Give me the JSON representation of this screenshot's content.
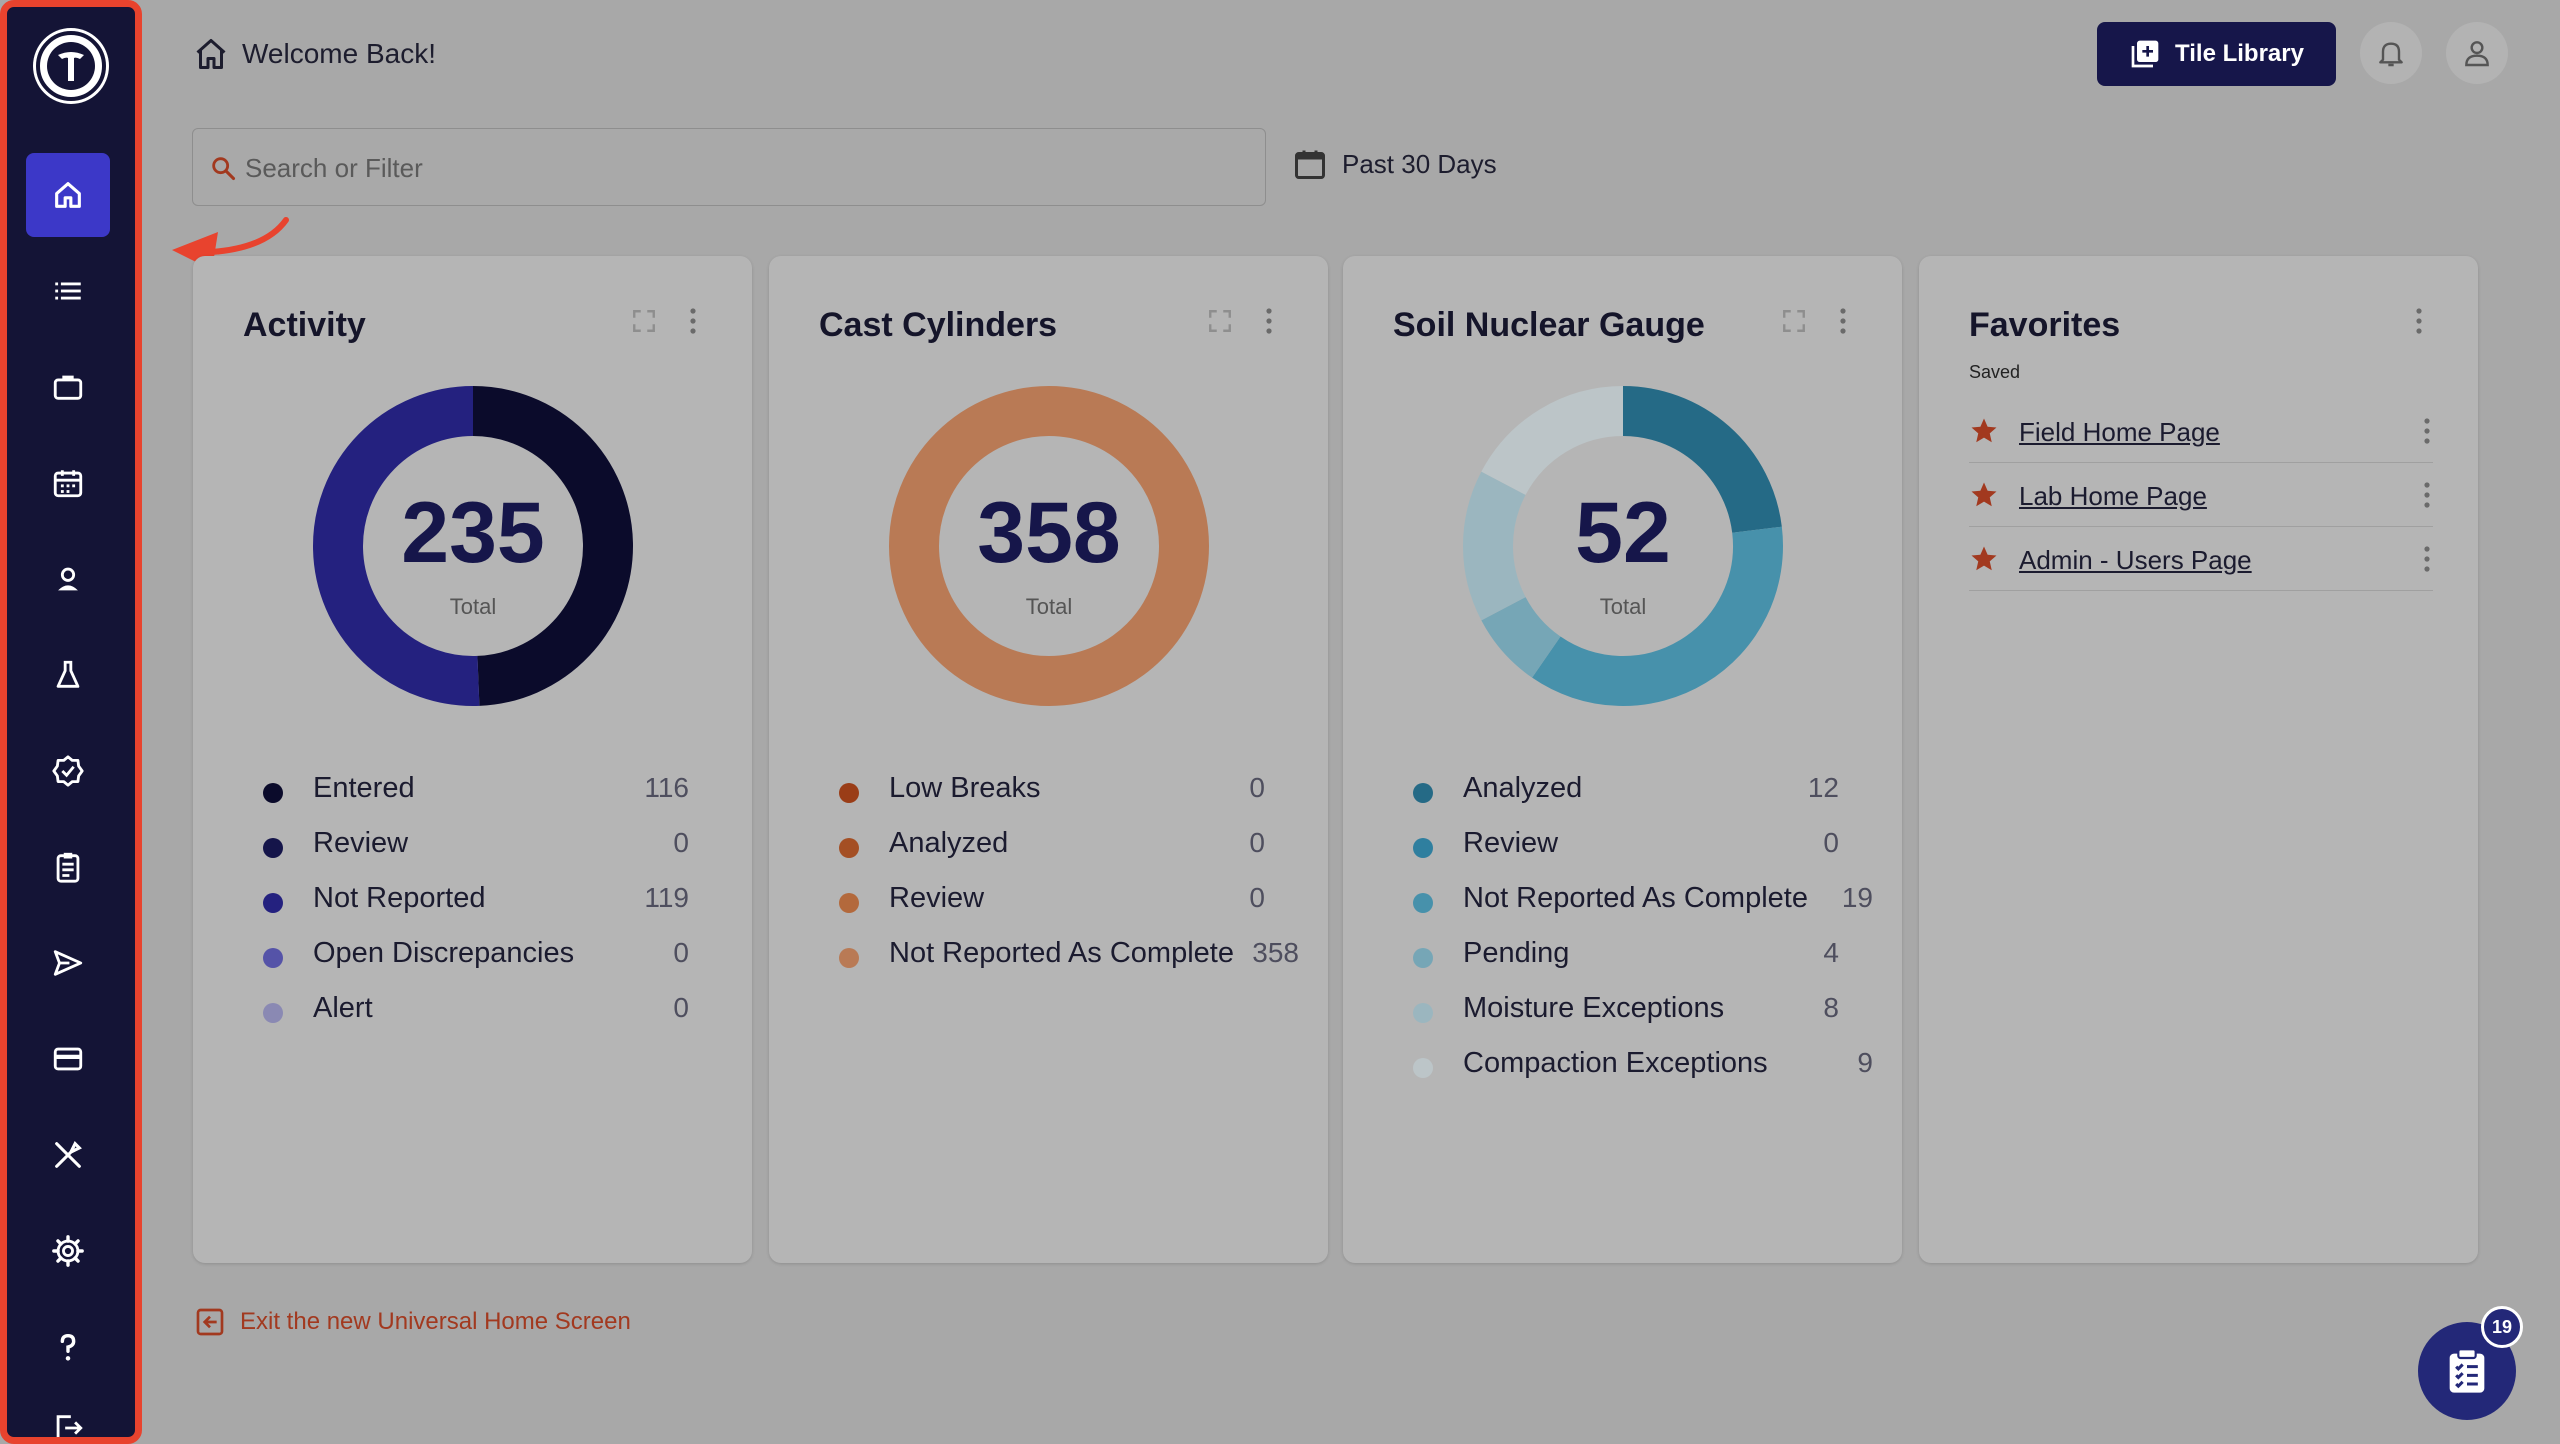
{
  "header": {
    "welcome": "Welcome Back!",
    "tile_library_label": "Tile Library"
  },
  "search": {
    "placeholder": "Search or Filter"
  },
  "date_filter": {
    "label": "Past 30 Days"
  },
  "sidebar": {
    "items": [
      {
        "icon": "home-icon",
        "active": true
      },
      {
        "icon": "list-icon"
      },
      {
        "icon": "briefcase-icon"
      },
      {
        "icon": "calendar-icon"
      },
      {
        "icon": "person-icon"
      },
      {
        "icon": "flask-icon"
      },
      {
        "icon": "verified-badge-icon"
      },
      {
        "icon": "clipboard-icon"
      },
      {
        "icon": "send-icon"
      },
      {
        "icon": "credit-card-icon"
      },
      {
        "icon": "tools-icon"
      },
      {
        "icon": "gear-icon"
      },
      {
        "icon": "help-icon"
      },
      {
        "icon": "logout-icon"
      }
    ]
  },
  "cards": [
    {
      "title": "Activity",
      "total": "235",
      "total_label": "Total",
      "segments": [
        {
          "label": "Entered",
          "value": 116,
          "color": "#0b0b2b"
        },
        {
          "label": "Review",
          "value": 0,
          "color": "#15154a"
        },
        {
          "label": "Not Reported",
          "value": 119,
          "color": "#24217f"
        },
        {
          "label": "Open Discrepancies",
          "value": 0,
          "color": "#5553a8"
        },
        {
          "label": "Alert",
          "value": 0,
          "color": "#8a89b3"
        }
      ]
    },
    {
      "title": "Cast Cylinders",
      "total": "358",
      "total_label": "Total",
      "segments": [
        {
          "label": "Low Breaks",
          "value": 0,
          "color": "#9a3d17"
        },
        {
          "label": "Analyzed",
          "value": 0,
          "color": "#a44f24"
        },
        {
          "label": "Review",
          "value": 0,
          "color": "#b3693c"
        },
        {
          "label": "Not Reported As Complete",
          "value": 358,
          "color": "#b97a55"
        }
      ]
    },
    {
      "title": "Soil Nuclear Gauge",
      "total": "52",
      "total_label": "Total",
      "segments": [
        {
          "label": "Analyzed",
          "value": 12,
          "color": "#256a86"
        },
        {
          "label": "Review",
          "value": 0,
          "color": "#2f7f9f"
        },
        {
          "label": "Not Reported As Complete",
          "value": 19,
          "color": "#4791ab"
        },
        {
          "label": "Pending",
          "value": 4,
          "color": "#76a6b6"
        },
        {
          "label": "Moisture Exceptions",
          "value": 8,
          "color": "#9bb6bf"
        },
        {
          "label": "Compaction Exceptions",
          "value": 9,
          "color": "#bcc5c8"
        }
      ]
    }
  ],
  "favorites": {
    "title": "Favorites",
    "subtitle": "Saved",
    "items": [
      "Field Home Page",
      "Lab Home Page",
      "Admin - Users Page"
    ]
  },
  "footer": {
    "exit_label": "Exit the new Universal Home Screen"
  },
  "fab": {
    "badge": "19"
  }
}
